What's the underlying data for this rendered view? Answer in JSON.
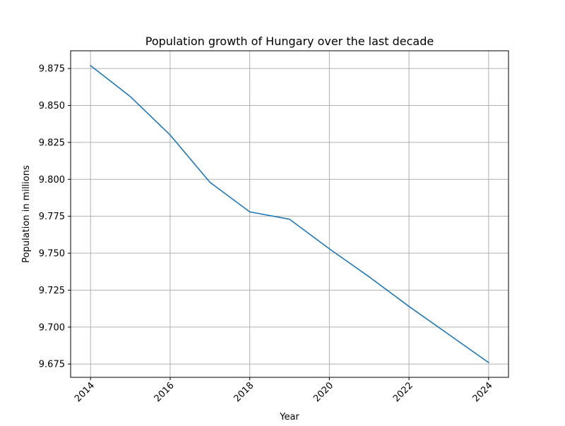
{
  "chart_data": {
    "type": "line",
    "title": "Population growth of Hungary over the last decade",
    "xlabel": "Year",
    "ylabel": "Population in millions",
    "x": [
      2014,
      2015,
      2016,
      2017,
      2018,
      2019,
      2020,
      2021,
      2022,
      2023,
      2024
    ],
    "series": [
      {
        "values": [
          9.877,
          9.856,
          9.83,
          9.798,
          9.778,
          9.773,
          9.753,
          9.734,
          9.714,
          9.695,
          9.676
        ],
        "color": "#1f77b4"
      }
    ],
    "xlim": [
      2013.5,
      2024.5
    ],
    "ylim": [
      9.666,
      9.887
    ],
    "xticks": [
      2014,
      2016,
      2018,
      2020,
      2022,
      2024
    ],
    "xtick_labels": [
      "2014",
      "2016",
      "2018",
      "2020",
      "2022",
      "2024"
    ],
    "xtick_rotation": 45,
    "yticks": [
      9.675,
      9.7,
      9.725,
      9.75,
      9.775,
      9.8,
      9.825,
      9.85,
      9.875
    ],
    "ytick_labels": [
      "9.675",
      "9.700",
      "9.725",
      "9.750",
      "9.775",
      "9.800",
      "9.825",
      "9.850",
      "9.875"
    ],
    "grid": true
  }
}
